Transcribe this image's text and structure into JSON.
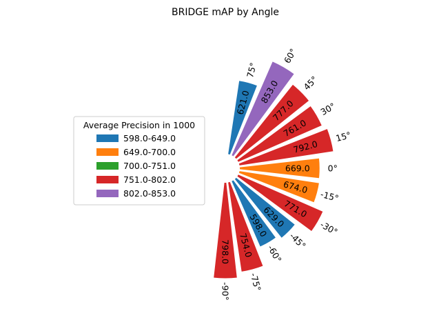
{
  "chart_data": {
    "type": "polar-bar",
    "title": "BRIDGE mAP by Angle",
    "legend": {
      "title": "Average Precision in 1000",
      "placement": "left",
      "entries": [
        {
          "label": "598.0-649.0",
          "color": "#1f77b4"
        },
        {
          "label": "649.0-700.0",
          "color": "#ff7f0e"
        },
        {
          "label": "700.0-751.0",
          "color": "#2ca02c"
        },
        {
          "label": "751.0-802.0",
          "color": "#d62728"
        },
        {
          "label": "802.0-853.0",
          "color": "#9467bd"
        }
      ]
    },
    "bars": [
      {
        "angle_label": "-90°",
        "angle": -90,
        "value": 798.0,
        "value_label": "798.0",
        "color": "#d62728"
      },
      {
        "angle_label": "-75°",
        "angle": -75,
        "value": 754.0,
        "value_label": "754.0",
        "color": "#d62728"
      },
      {
        "angle_label": "-60°",
        "angle": -60,
        "value": 598.0,
        "value_label": "598.0",
        "color": "#1f77b4"
      },
      {
        "angle_label": "-45°",
        "angle": -45,
        "value": 629.0,
        "value_label": "629.0",
        "color": "#1f77b4"
      },
      {
        "angle_label": "-30°",
        "angle": -30,
        "value": 771.0,
        "value_label": "771.0",
        "color": "#d62728"
      },
      {
        "angle_label": "-15°",
        "angle": -15,
        "value": 674.0,
        "value_label": "674.0",
        "color": "#ff7f0e"
      },
      {
        "angle_label": "0°",
        "angle": 0,
        "value": 669.0,
        "value_label": "669.0",
        "color": "#ff7f0e"
      },
      {
        "angle_label": "15°",
        "angle": 15,
        "value": 792.0,
        "value_label": "792.0",
        "color": "#d62728"
      },
      {
        "angle_label": "30°",
        "angle": 30,
        "value": 761.0,
        "value_label": "761.0",
        "color": "#d62728"
      },
      {
        "angle_label": "45°",
        "angle": 45,
        "value": 777.0,
        "value_label": "777.0",
        "color": "#d62728"
      },
      {
        "angle_label": "60°",
        "angle": 60,
        "value": 853.0,
        "value_label": "853.0",
        "color": "#9467bd"
      },
      {
        "angle_label": "75°",
        "angle": 75,
        "value": 621.0,
        "value_label": "621.0",
        "color": "#1f77b4"
      }
    ]
  }
}
